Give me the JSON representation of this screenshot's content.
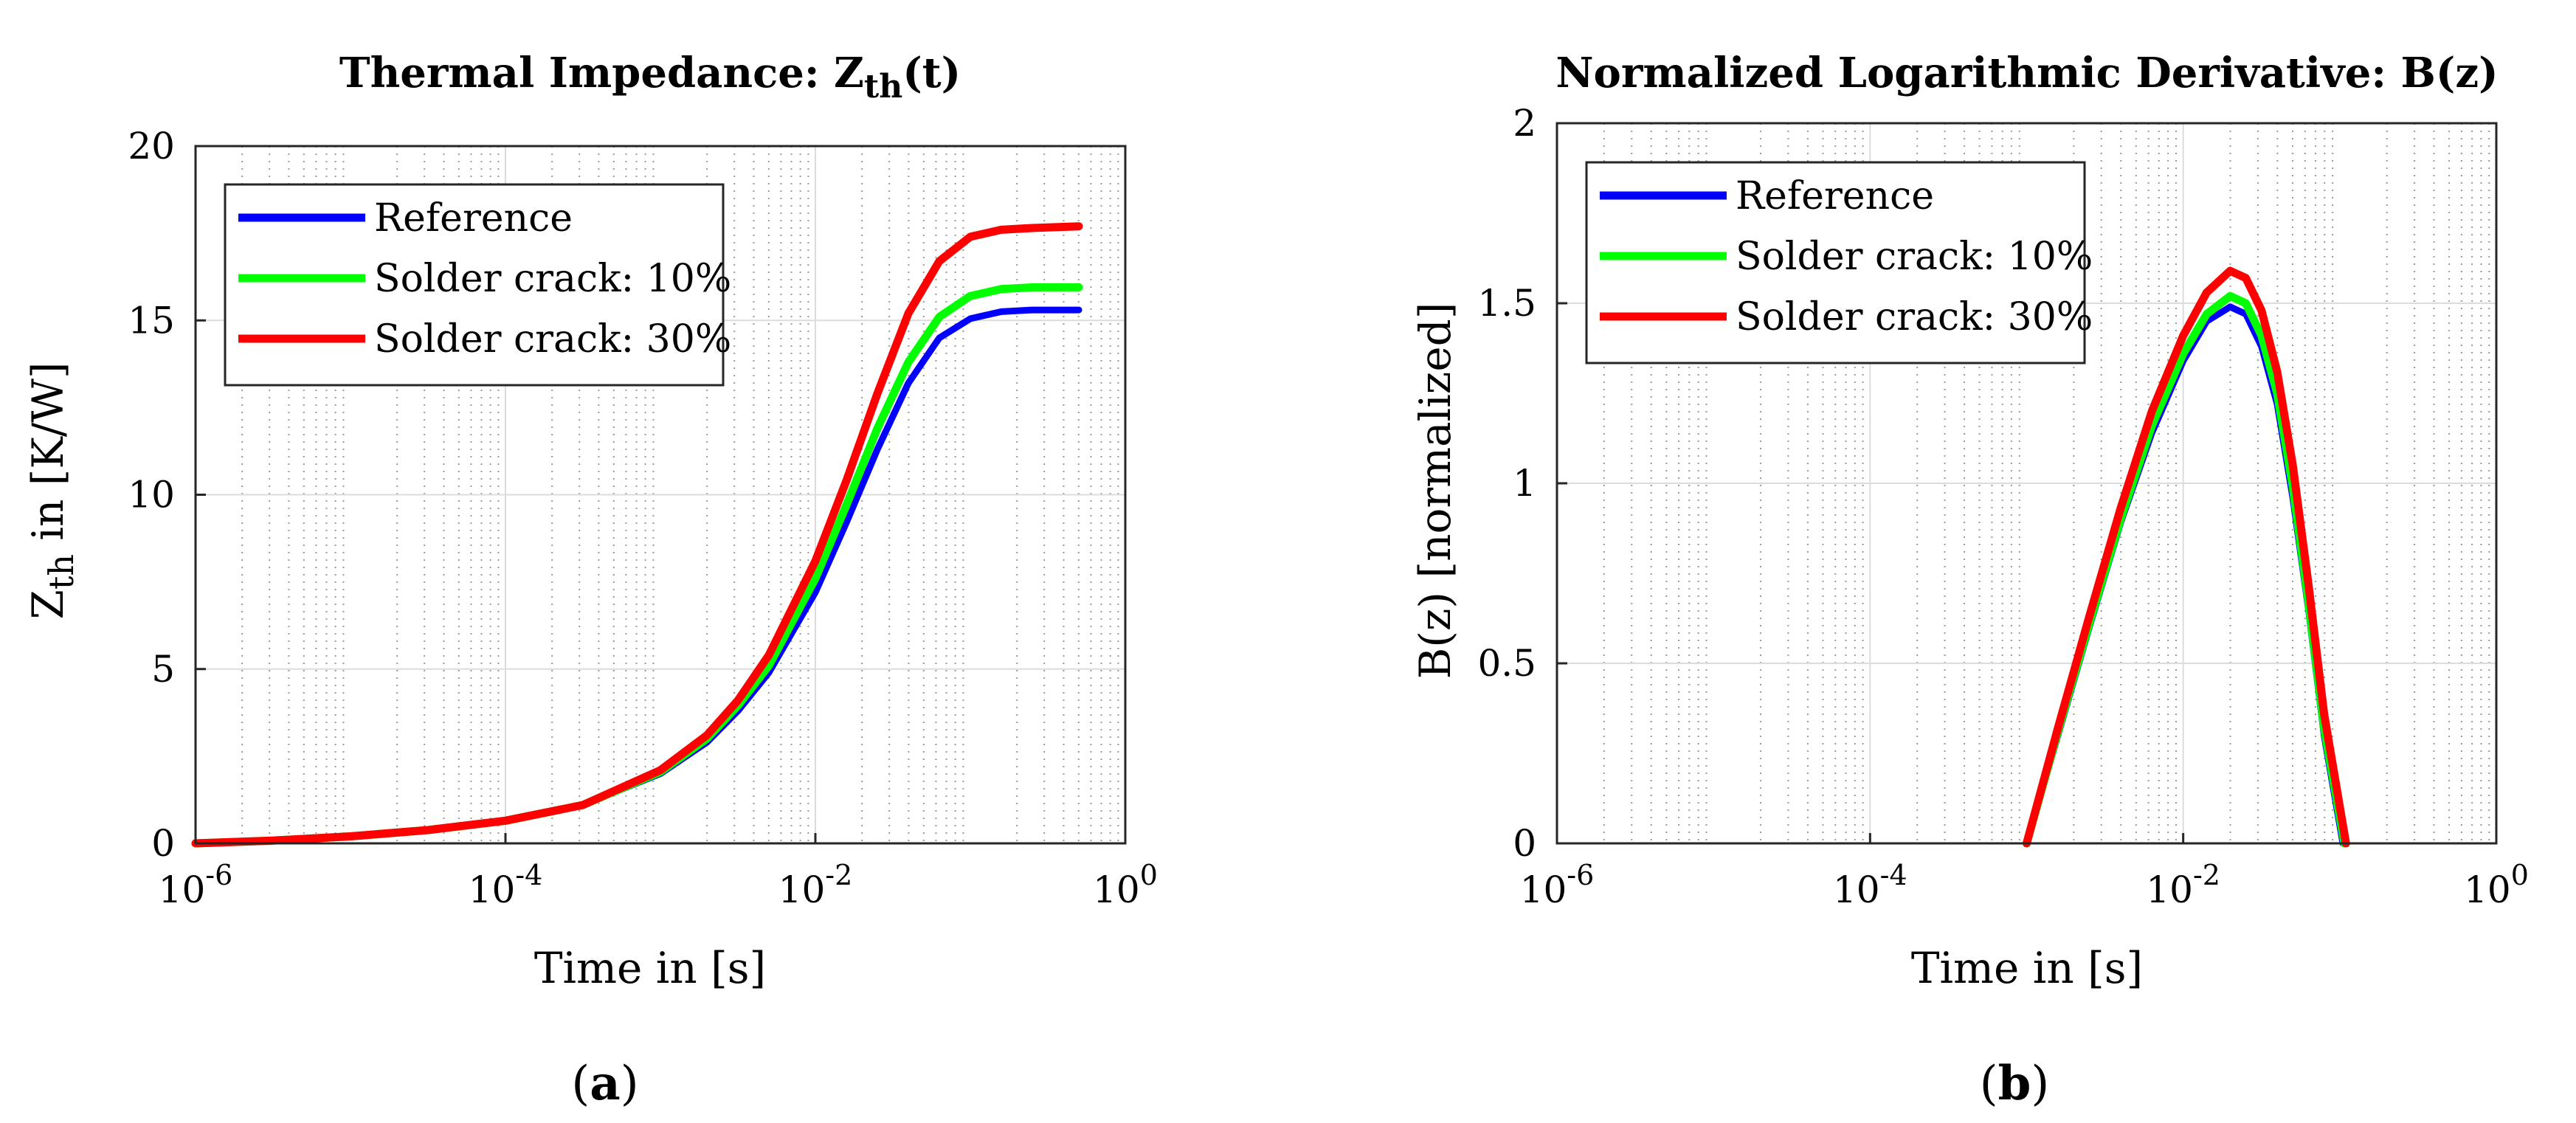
{
  "figure": {
    "panel_a": {
      "caption_open": "(",
      "caption_letter": "a",
      "caption_close": ")"
    },
    "panel_b": {
      "caption_open": "(",
      "caption_letter": "b",
      "caption_close": ")"
    }
  },
  "chart_data": [
    {
      "type": "line",
      "title_main": "Thermal Impedance: Z",
      "title_sub": "th",
      "title_tail": "(t)",
      "xlabel": "Time in [s]",
      "ylabel_main": "Z",
      "ylabel_sub": "th",
      "ylabel_tail": " in [K/W]",
      "xscale": "log",
      "xlim_exp": [
        -6,
        0
      ],
      "ylim": [
        0,
        20
      ],
      "yticks": [
        0,
        5,
        10,
        15,
        20
      ],
      "xtick_base": "10",
      "xtick_exps": [
        -6,
        -4,
        -2,
        0
      ],
      "grid": true,
      "legend_placement": "top-left",
      "series": [
        {
          "name": "Reference",
          "color": "#0000ff",
          "log10_x": [
            -6,
            -5.5,
            -5,
            -4.5,
            -4,
            -3.5,
            -3,
            -2.7,
            -2.5,
            -2.3,
            -2,
            -1.8,
            -1.6,
            -1.4,
            -1.2,
            -1,
            -0.8,
            -0.6,
            -0.3
          ],
          "y": [
            0,
            0.08,
            0.2,
            0.38,
            0.65,
            1.1,
            2.0,
            2.9,
            3.8,
            4.9,
            7.2,
            9.2,
            11.3,
            13.2,
            14.5,
            15.05,
            15.25,
            15.3,
            15.3
          ]
        },
        {
          "name": "Solder crack: 10%",
          "color": "#00ff00",
          "log10_x": [
            -6,
            -5.5,
            -5,
            -4.5,
            -4,
            -3.5,
            -3,
            -2.7,
            -2.5,
            -2.3,
            -2,
            -1.8,
            -1.6,
            -1.4,
            -1.2,
            -1,
            -0.8,
            -0.6,
            -0.3
          ],
          "y": [
            0,
            0.08,
            0.2,
            0.38,
            0.65,
            1.1,
            2.05,
            3.0,
            3.95,
            5.1,
            7.6,
            9.7,
            11.9,
            13.8,
            15.1,
            15.7,
            15.9,
            15.95,
            15.95
          ]
        },
        {
          "name": "Solder crack: 30%",
          "color": "#ff0000",
          "log10_x": [
            -6,
            -5.5,
            -5,
            -4.5,
            -4,
            -3.5,
            -3,
            -2.7,
            -2.5,
            -2.3,
            -2,
            -1.8,
            -1.6,
            -1.4,
            -1.2,
            -1,
            -0.8,
            -0.6,
            -0.3
          ],
          "y": [
            0,
            0.08,
            0.2,
            0.38,
            0.65,
            1.1,
            2.1,
            3.1,
            4.1,
            5.4,
            8.1,
            10.4,
            12.9,
            15.2,
            16.7,
            17.4,
            17.6,
            17.65,
            17.7
          ]
        }
      ]
    },
    {
      "type": "line",
      "title_main": "Normalized Logarithmic Derivative: B(z)",
      "xlabel": "Time in [s]",
      "ylabel_main": "B(z) [normalized]",
      "xscale": "log",
      "xlim_exp": [
        -6,
        0
      ],
      "ylim": [
        0,
        2
      ],
      "yticks": [
        0,
        0.5,
        1,
        1.5,
        2
      ],
      "xtick_base": "10",
      "xtick_exps": [
        -6,
        -4,
        -2,
        0
      ],
      "grid": true,
      "legend_placement": "top-left",
      "series": [
        {
          "name": "Reference",
          "color": "#0000ff",
          "log10_x": [
            -3,
            -2.8,
            -2.6,
            -2.4,
            -2.2,
            -2.0,
            -1.85,
            -1.7,
            -1.6,
            -1.5,
            -1.4,
            -1.3,
            -1.2,
            -1.1,
            -0.98
          ],
          "y": [
            0,
            0.3,
            0.6,
            0.89,
            1.14,
            1.34,
            1.45,
            1.49,
            1.47,
            1.38,
            1.22,
            0.96,
            0.65,
            0.3,
            0
          ]
        },
        {
          "name": "Solder crack: 10%",
          "color": "#00ff00",
          "log10_x": [
            -3,
            -2.8,
            -2.6,
            -2.4,
            -2.2,
            -2.0,
            -1.85,
            -1.7,
            -1.6,
            -1.5,
            -1.4,
            -1.3,
            -1.2,
            -1.1,
            -0.97
          ],
          "y": [
            0,
            0.31,
            0.61,
            0.9,
            1.16,
            1.36,
            1.47,
            1.52,
            1.5,
            1.41,
            1.25,
            0.99,
            0.67,
            0.32,
            0
          ]
        },
        {
          "name": "Solder crack: 30%",
          "color": "#ff0000",
          "log10_x": [
            -3,
            -2.8,
            -2.6,
            -2.4,
            -2.2,
            -2.0,
            -1.85,
            -1.7,
            -1.6,
            -1.5,
            -1.4,
            -1.3,
            -1.2,
            -1.1,
            -0.96
          ],
          "y": [
            0,
            0.32,
            0.63,
            0.93,
            1.2,
            1.41,
            1.53,
            1.59,
            1.57,
            1.48,
            1.31,
            1.05,
            0.72,
            0.36,
            0
          ]
        }
      ]
    }
  ]
}
